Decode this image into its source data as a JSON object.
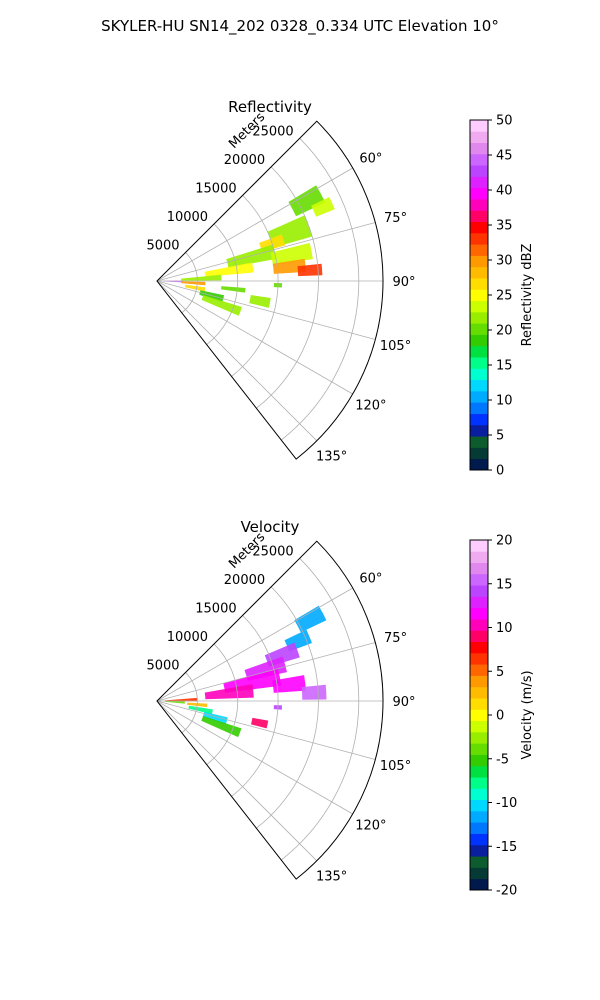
{
  "figure": {
    "title": "SKYLER-HU  SN14_202  0328_0.334 UTC Elevation 10°"
  },
  "chart_data": [
    {
      "type": "heatmap",
      "subtype": "polar-sector-ppi",
      "title": "Reflectivity",
      "range_label": "Meters",
      "range_ticks": [
        "5000",
        "10000",
        "15000",
        "20000",
        "25000"
      ],
      "range_values": [
        5000,
        10000,
        15000,
        20000,
        25000
      ],
      "range_max": 28000,
      "azimuth_ticks": [
        "60°",
        "75°",
        "90°",
        "105°",
        "120°",
        "135°"
      ],
      "azimuth_values": [
        60,
        75,
        90,
        105,
        120,
        135
      ],
      "azimuth_range": [
        45,
        142
      ],
      "grid": true,
      "colorbar": {
        "label": "Reflectivity dBZ",
        "ticks": [
          "0",
          "5",
          "10",
          "15",
          "20",
          "25",
          "30",
          "35",
          "40",
          "45",
          "50"
        ],
        "vmin": 0,
        "vmax": 50,
        "colors": [
          "#001a4d",
          "#053a35",
          "#0d5c2e",
          "#0a1ea0",
          "#0033ff",
          "#0077ff",
          "#00aaff",
          "#00d8ff",
          "#00ffd0",
          "#00ff88",
          "#00e040",
          "#33cc00",
          "#66dd00",
          "#99ee00",
          "#ccff00",
          "#ffff00",
          "#ffdd00",
          "#ffbb00",
          "#ff9900",
          "#ff6600",
          "#ff3300",
          "#ff0000",
          "#ff0066",
          "#ff00bb",
          "#ff00ff",
          "#dd22ff",
          "#bb44ff",
          "#cc66ff",
          "#e088ee",
          "#f0aaf0",
          "#ffccff"
        ]
      },
      "echoes": [
        {
          "az": 62,
          "r": 21000,
          "dr": 4000,
          "daz": 6,
          "value": 20
        },
        {
          "az": 66,
          "r": 22500,
          "dr": 2500,
          "daz": 4,
          "value": 24
        },
        {
          "az": 70,
          "r": 17500,
          "dr": 5000,
          "daz": 8,
          "value": 22
        },
        {
          "az": 72,
          "r": 15000,
          "dr": 3000,
          "daz": 5,
          "value": 27
        },
        {
          "az": 76,
          "r": 12000,
          "dr": 6000,
          "daz": 7,
          "value": 21
        },
        {
          "az": 79,
          "r": 17000,
          "dr": 5000,
          "daz": 6,
          "value": 23
        },
        {
          "az": 82,
          "r": 9000,
          "dr": 6000,
          "daz": 6,
          "value": 25
        },
        {
          "az": 84,
          "r": 16500,
          "dr": 4000,
          "daz": 5,
          "value": 30
        },
        {
          "az": 86,
          "r": 19000,
          "dr": 3000,
          "daz": 4,
          "value": 33
        },
        {
          "az": 87,
          "r": 5500,
          "dr": 5000,
          "daz": 5,
          "value": 21
        },
        {
          "az": 91,
          "r": 2000,
          "dr": 2500,
          "daz": 4,
          "value": 44
        },
        {
          "az": 93,
          "r": 4500,
          "dr": 3000,
          "daz": 4,
          "value": 30
        },
        {
          "az": 96,
          "r": 9500,
          "dr": 3000,
          "daz": 3,
          "value": 20
        },
        {
          "az": 100,
          "r": 4800,
          "dr": 2500,
          "daz": 5,
          "value": 26
        },
        {
          "az": 105,
          "r": 7000,
          "dr": 3000,
          "daz": 6,
          "value": 18
        },
        {
          "az": 110,
          "r": 8500,
          "dr": 5000,
          "daz": 6,
          "value": 21
        },
        {
          "az": 101,
          "r": 13000,
          "dr": 2500,
          "daz": 5,
          "value": 22
        },
        {
          "az": 92,
          "r": 15000,
          "dr": 1000,
          "daz": 2,
          "value": 20
        }
      ]
    },
    {
      "type": "heatmap",
      "subtype": "polar-sector-ppi",
      "title": "Velocity",
      "range_label": "Meters",
      "range_ticks": [
        "5000",
        "10000",
        "15000",
        "20000",
        "25000"
      ],
      "range_values": [
        5000,
        10000,
        15000,
        20000,
        25000
      ],
      "range_max": 28000,
      "azimuth_ticks": [
        "60°",
        "75°",
        "90°",
        "105°",
        "120°",
        "135°"
      ],
      "azimuth_values": [
        60,
        75,
        90,
        105,
        120,
        135
      ],
      "azimuth_range": [
        45,
        142
      ],
      "grid": true,
      "colorbar": {
        "label": "Velocity (m/s)",
        "ticks": [
          "-20",
          "-15",
          "-10",
          "-5",
          "0",
          "5",
          "10",
          "15",
          "20"
        ],
        "vmin": -20,
        "vmax": 20,
        "colors": [
          "#001a4d",
          "#053a35",
          "#0d5c2e",
          "#0a1ea0",
          "#0033ff",
          "#0077ff",
          "#00aaff",
          "#00d8ff",
          "#00ffd0",
          "#00ff88",
          "#00e040",
          "#33cc00",
          "#66dd00",
          "#99ee00",
          "#ccff00",
          "#ffff00",
          "#ffdd00",
          "#ffbb00",
          "#ff9900",
          "#ff6600",
          "#ff3300",
          "#ff0000",
          "#ff0066",
          "#ff00bb",
          "#ff00ff",
          "#dd22ff",
          "#bb44ff",
          "#cc66ff",
          "#e088ee",
          "#f0aaf0",
          "#ffccff"
        ]
      },
      "echoes": [
        {
          "az": 62,
          "r": 21500,
          "dr": 3500,
          "daz": 5,
          "value": -12
        },
        {
          "az": 67,
          "r": 19000,
          "dr": 3000,
          "daz": 5,
          "value": -11
        },
        {
          "az": 70,
          "r": 16500,
          "dr": 4000,
          "daz": 6,
          "value": 14
        },
        {
          "az": 74,
          "r": 14000,
          "dr": 5000,
          "daz": 7,
          "value": 13
        },
        {
          "az": 79,
          "r": 12000,
          "dr": 7000,
          "daz": 8,
          "value": 11
        },
        {
          "az": 84,
          "r": 9000,
          "dr": 6000,
          "daz": 8,
          "value": 10
        },
        {
          "az": 83,
          "r": 16500,
          "dr": 4000,
          "daz": 6,
          "value": 12
        },
        {
          "az": 87,
          "r": 19500,
          "dr": 3000,
          "daz": 5,
          "value": 15
        },
        {
          "az": 88,
          "r": 3000,
          "dr": 4000,
          "daz": 5,
          "value": 6
        },
        {
          "az": 93,
          "r": 2200,
          "dr": 2500,
          "daz": 5,
          "value": -4
        },
        {
          "az": 95,
          "r": 5000,
          "dr": 2500,
          "daz": 4,
          "value": 2
        },
        {
          "az": 101,
          "r": 5500,
          "dr": 3000,
          "daz": 5,
          "value": -8
        },
        {
          "az": 106,
          "r": 7500,
          "dr": 3000,
          "daz": 6,
          "value": -10
        },
        {
          "az": 111,
          "r": 8500,
          "dr": 5000,
          "daz": 6,
          "value": -5
        },
        {
          "az": 102,
          "r": 13000,
          "dr": 2000,
          "daz": 4,
          "value": 9
        },
        {
          "az": 93,
          "r": 15000,
          "dr": 1000,
          "daz": 2,
          "value": 14
        }
      ]
    }
  ]
}
